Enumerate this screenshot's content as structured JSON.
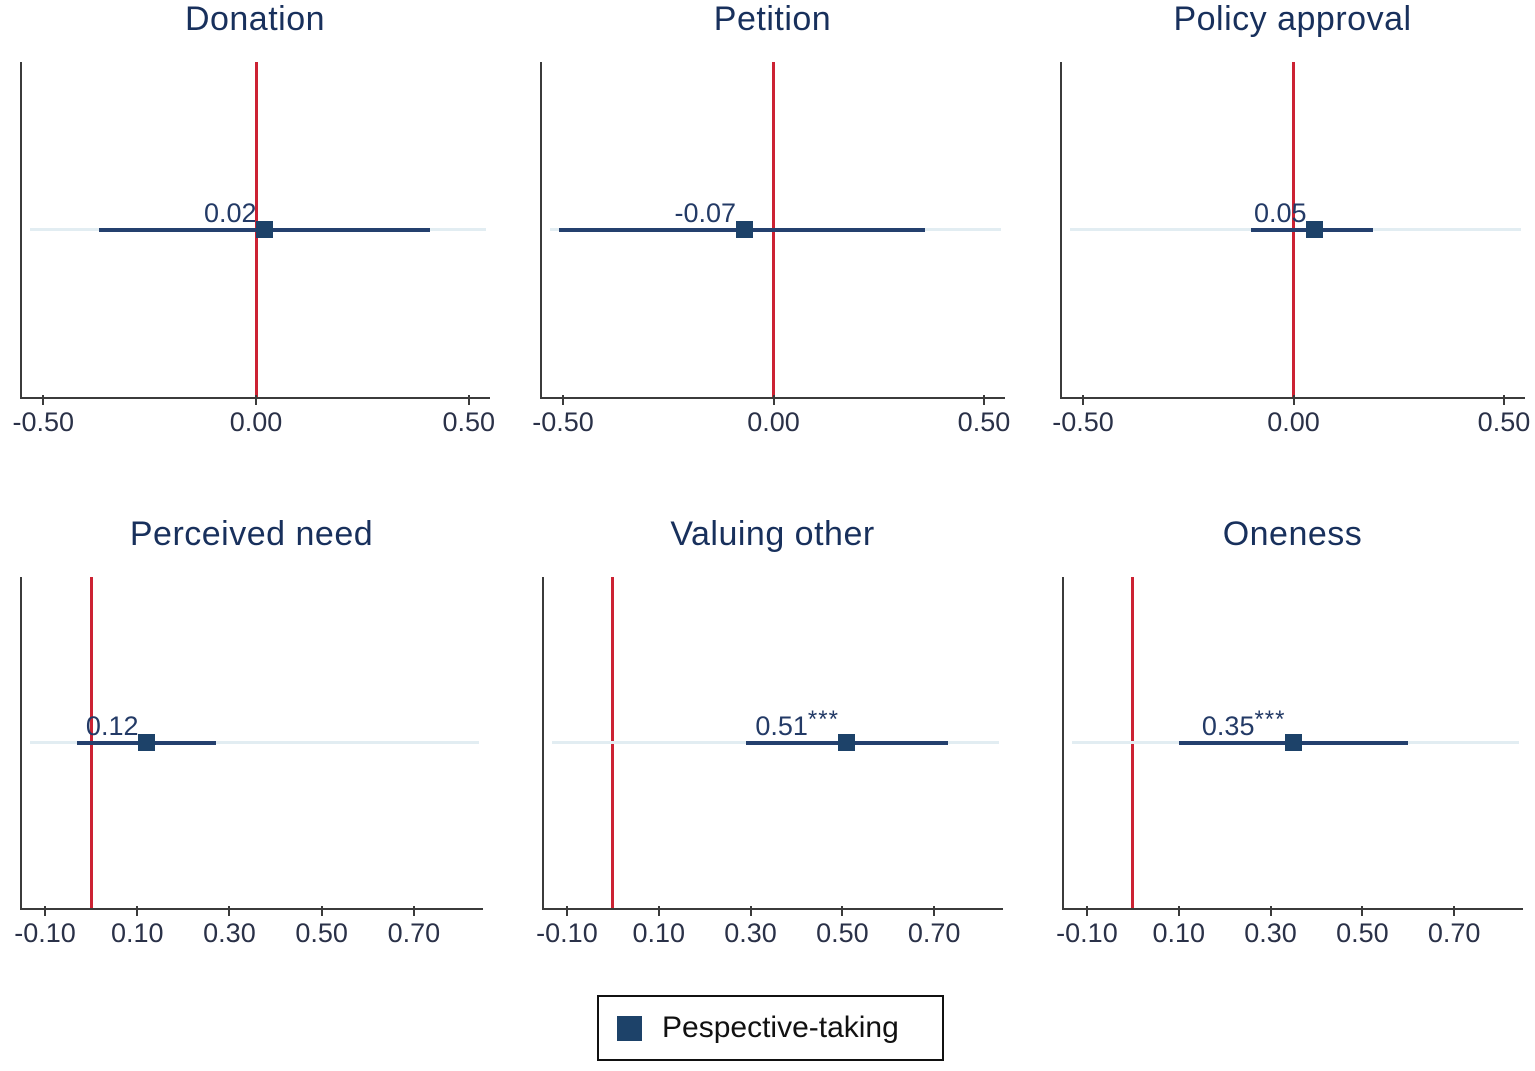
{
  "figure": {
    "background": "#ffffff"
  },
  "chart_data": {
    "type": "scatter",
    "subtype": "coefficient-plot-grid",
    "title": "",
    "xlabel": "",
    "ylabel": "",
    "grid": "single light horizontal gridline at estimate row",
    "legend_position": "bottom-center",
    "legend": {
      "label": "Pespective-taking",
      "marker": "square"
    },
    "rows": [
      {
        "xlim": [
          -0.55,
          0.55
        ],
        "ticks": [
          -0.5,
          0.0,
          0.5
        ],
        "tick_labels": [
          "-0.50",
          "0.00",
          "0.50"
        ]
      },
      {
        "xlim": [
          -0.15,
          0.85
        ],
        "ticks": [
          -0.1,
          0.1,
          0.3,
          0.5,
          0.7
        ],
        "tick_labels": [
          "-0.10",
          "0.10",
          "0.30",
          "0.50",
          "0.70"
        ]
      }
    ],
    "panels": [
      {
        "title": "Donation",
        "row": 0,
        "estimate": 0.02,
        "label": "0.02",
        "stars": "",
        "ci": [
          -0.37,
          0.41
        ]
      },
      {
        "title": "Petition",
        "row": 0,
        "estimate": -0.07,
        "label": "-0.07",
        "stars": "",
        "ci": [
          -0.51,
          0.36
        ]
      },
      {
        "title": "Policy approval",
        "row": 0,
        "estimate": 0.05,
        "label": "0.05",
        "stars": "",
        "ci": [
          -0.1,
          0.19
        ]
      },
      {
        "title": "Perceived need",
        "row": 1,
        "estimate": 0.12,
        "label": "0.12",
        "stars": "",
        "ci": [
          -0.03,
          0.27
        ]
      },
      {
        "title": "Valuing other",
        "row": 1,
        "estimate": 0.51,
        "label": "0.51",
        "stars": "***",
        "ci": [
          0.29,
          0.73
        ]
      },
      {
        "title": "Oneness",
        "row": 1,
        "estimate": 0.35,
        "label": "0.35",
        "stars": "***",
        "ci": [
          0.1,
          0.6
        ]
      }
    ],
    "colors": {
      "ci_line": "#24406e",
      "marker": "#1d4269",
      "zero_line": "#cc2233",
      "gridline": "#e2edf2",
      "axis": "#3b3b3b",
      "title_text": "#18305c",
      "value_text": "#233a66",
      "tick_text": "#2a3148",
      "legend_text": "#111111",
      "legend_border": "#111111"
    }
  }
}
